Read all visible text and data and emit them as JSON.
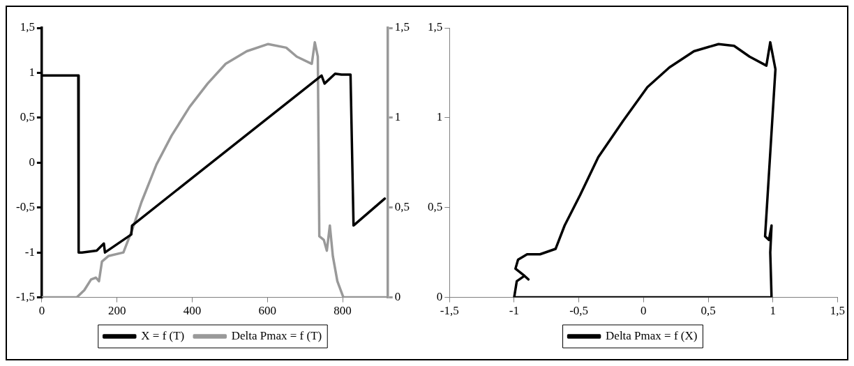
{
  "chart_data": [
    {
      "type": "line",
      "xlim": [
        0,
        920
      ],
      "xticks": [
        0,
        200,
        400,
        600,
        800
      ],
      "ylim": [
        -1.5,
        1.5
      ],
      "yticks": [
        {
          "value": -1.5,
          "label": "-1,5"
        },
        {
          "value": -1,
          "label": "-1"
        },
        {
          "value": -0.5,
          "label": "-0,5"
        },
        {
          "value": 0,
          "label": "0"
        },
        {
          "value": 0.5,
          "label": "0,5"
        },
        {
          "value": 1,
          "label": "1"
        },
        {
          "value": 1.5,
          "label": "1,5"
        }
      ],
      "y2lim": [
        0,
        1.5
      ],
      "y2ticks": [
        {
          "value": 0,
          "label": "0"
        },
        {
          "value": 0.5,
          "label": "0,5"
        },
        {
          "value": 1,
          "label": "1"
        },
        {
          "value": 1.5,
          "label": "1,5"
        }
      ],
      "legend": "bottom",
      "series": [
        {
          "name": "X = f (T)",
          "color": "#000000",
          "x": [
            0,
            97,
            98,
            107,
            146,
            165,
            168,
            238,
            240,
            744,
            752,
            780,
            797,
            821,
            829,
            912
          ],
          "values": [
            0.97,
            0.97,
            -1,
            -1,
            -0.98,
            -0.9,
            -1,
            -0.8,
            -0.7,
            0.97,
            0.88,
            0.99,
            0.98,
            0.98,
            -0.7,
            -0.4
          ]
        },
        {
          "name": "Delta Pmax = f (T)",
          "color": "#999999",
          "axis": "y2",
          "x": [
            0,
            93,
            113,
            131,
            144,
            152,
            160,
            177,
            217,
            241,
            265,
            305,
            345,
            393,
            441,
            489,
            545,
            602,
            650,
            678,
            718,
            726,
            734,
            738,
            750,
            758,
            766,
            774,
            786,
            802,
            920
          ],
          "values": [
            0,
            0,
            0.04,
            0.1,
            0.11,
            0.09,
            0.2,
            0.23,
            0.25,
            0.38,
            0.53,
            0.74,
            0.9,
            1.06,
            1.19,
            1.3,
            1.37,
            1.41,
            1.39,
            1.34,
            1.3,
            1.42,
            1.34,
            0.34,
            0.32,
            0.26,
            0.4,
            0.23,
            0.09,
            0,
            0
          ]
        }
      ]
    },
    {
      "type": "line",
      "xlim": [
        -1.5,
        1.5
      ],
      "xticks": [
        {
          "value": -1.5,
          "label": "-1,5"
        },
        -1,
        {
          "value": -0.5,
          "label": "-0,5"
        },
        0,
        {
          "value": 0.5,
          "label": "0,5"
        },
        1,
        {
          "value": 1.5,
          "label": "1,5"
        }
      ],
      "ylim": [
        0,
        1.5
      ],
      "yticks": [
        0,
        {
          "value": 0.5,
          "label": "0,5"
        },
        1,
        {
          "value": 1.5,
          "label": "1,5"
        }
      ],
      "legend": "bottom",
      "series": [
        {
          "name": "Delta Pmax = f (X)",
          "color": "#000000",
          "x": [
            0.98,
            -1.0,
            -0.98,
            -0.92,
            -0.89,
            -0.92,
            -0.99,
            -0.97,
            -0.9,
            -0.8,
            -0.68,
            -0.61,
            -0.49,
            -0.35,
            -0.16,
            0.03,
            0.2,
            0.39,
            0.58,
            0.7,
            0.82,
            0.95,
            0.98,
            1.02,
            0.94,
            0.97,
            0.99,
            0.98,
            0.99,
            -0.4
          ],
          "values": [
            0,
            0,
            0.09,
            0.12,
            0.1,
            0.12,
            0.16,
            0.21,
            0.24,
            0.24,
            0.27,
            0.4,
            0.57,
            0.78,
            0.98,
            1.17,
            1.28,
            1.37,
            1.41,
            1.4,
            1.34,
            1.29,
            1.42,
            1.27,
            0.34,
            0.32,
            0.4,
            0.25,
            0,
            0
          ]
        }
      ]
    }
  ]
}
